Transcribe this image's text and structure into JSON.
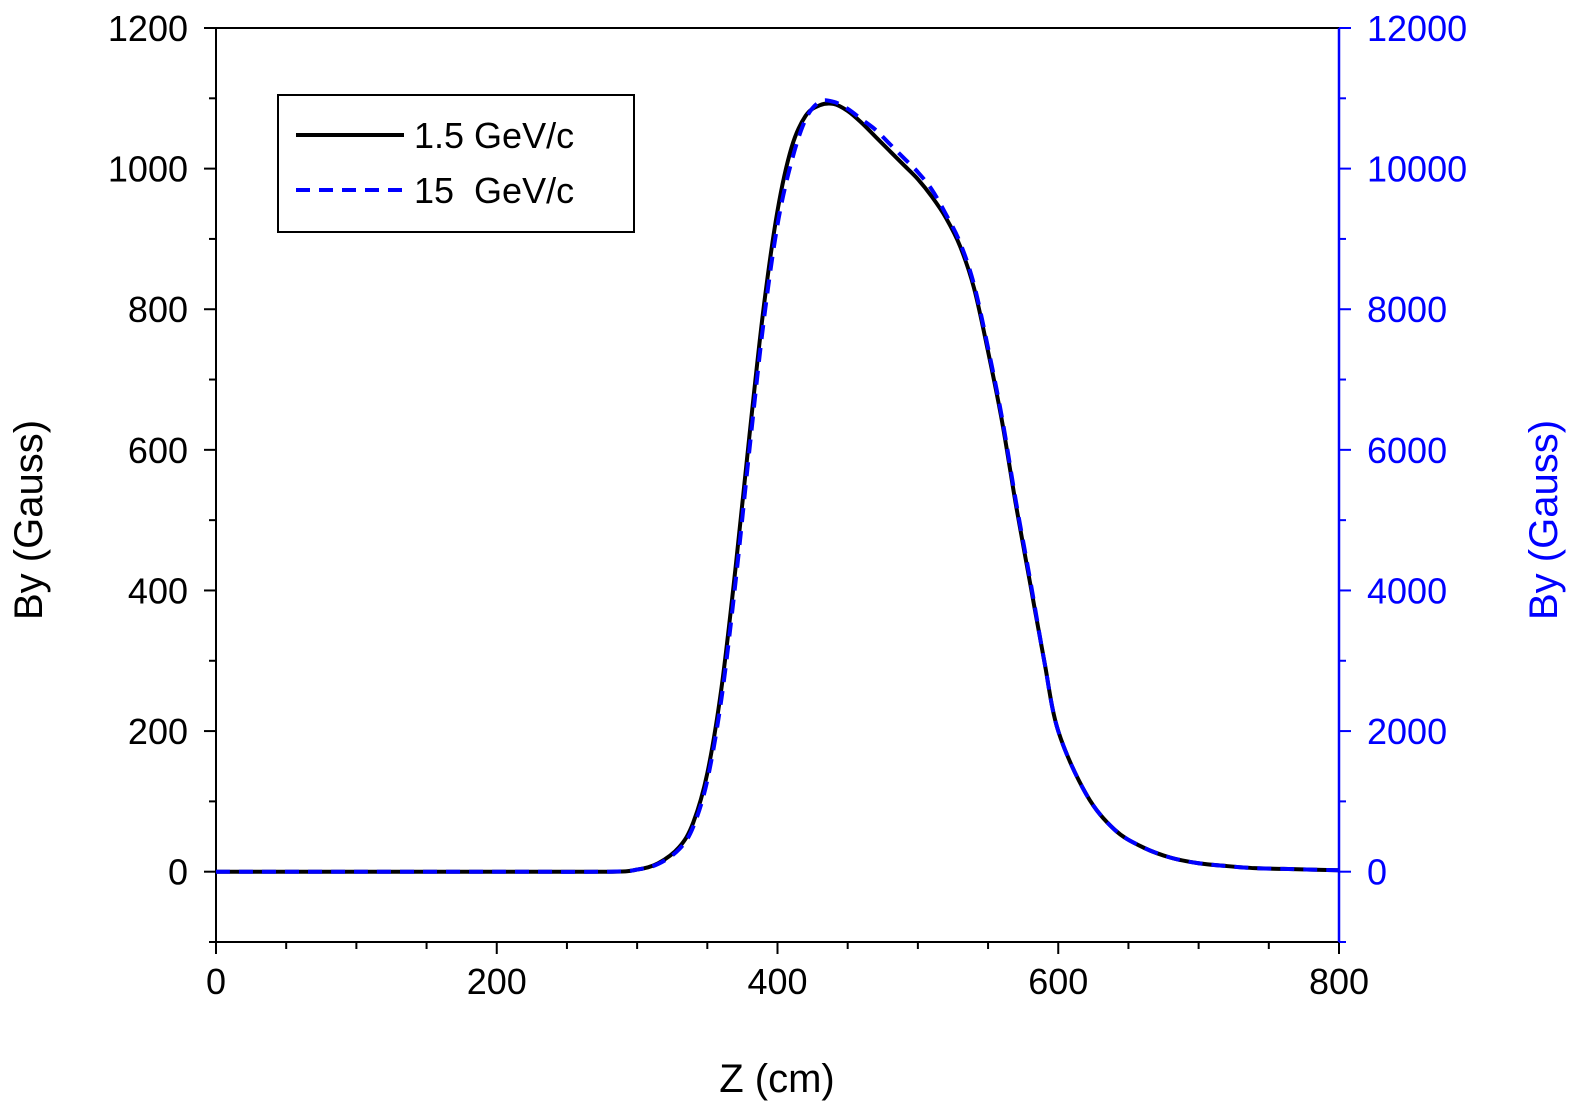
{
  "chart_data": {
    "type": "line",
    "title": "",
    "xlabel": "Z (cm)",
    "ylabel_left": "By (Gauss)",
    "ylabel_right": "By (Gauss)",
    "xlim": [
      0,
      800
    ],
    "ylim_left": [
      -100,
      1200
    ],
    "ylim_right": [
      -1000,
      12000
    ],
    "x_ticks": [
      0,
      200,
      400,
      600,
      800
    ],
    "y_ticks_left": [
      0,
      200,
      400,
      600,
      800,
      1000,
      1200
    ],
    "y_ticks_right": [
      0,
      2000,
      4000,
      6000,
      8000,
      10000,
      12000
    ],
    "grid": false,
    "legend_position": "top-left",
    "colors": {
      "series1": "#000000",
      "series2": "#0000ff",
      "right_axis": "#0000ff",
      "axis": "#000000"
    },
    "series": [
      {
        "name": "1.5 GeV/c",
        "axis": "left",
        "style": "solid",
        "color": "#000000",
        "x": [
          0,
          100,
          200,
          280,
          300,
          315,
          330,
          340,
          350,
          360,
          370,
          380,
          390,
          400,
          410,
          420,
          430,
          440,
          450,
          460,
          470,
          480,
          490,
          500,
          510,
          520,
          530,
          540,
          550,
          560,
          570,
          580,
          590,
          600,
          620,
          640,
          660,
          680,
          700,
          720,
          740,
          760,
          780,
          800
        ],
        "y": [
          0,
          0,
          0,
          0,
          3,
          12,
          35,
          70,
          140,
          260,
          430,
          620,
          800,
          940,
          1030,
          1075,
          1090,
          1092,
          1082,
          1065,
          1045,
          1025,
          1005,
          985,
          960,
          930,
          890,
          830,
          740,
          640,
          520,
          410,
          300,
          200,
          110,
          60,
          35,
          20,
          12,
          8,
          5,
          4,
          3,
          2
        ]
      },
      {
        "name": "15  GeV/c",
        "axis": "right",
        "style": "dashed",
        "color": "#0000ff",
        "x": [
          0,
          100,
          200,
          280,
          300,
          315,
          330,
          340,
          350,
          360,
          370,
          380,
          390,
          400,
          410,
          420,
          430,
          440,
          450,
          460,
          470,
          480,
          490,
          500,
          510,
          520,
          530,
          540,
          550,
          560,
          570,
          580,
          590,
          600,
          620,
          640,
          660,
          680,
          700,
          720,
          740,
          760,
          780,
          800
        ],
        "y": [
          0,
          0,
          0,
          0,
          30,
          110,
          320,
          640,
          1300,
          2450,
          4100,
          6000,
          7800,
          9200,
          10100,
          10700,
          10950,
          10950,
          10850,
          10700,
          10550,
          10350,
          10150,
          9950,
          9700,
          9350,
          8950,
          8350,
          7450,
          6450,
          5250,
          4150,
          3000,
          2000,
          1100,
          600,
          350,
          200,
          120,
          80,
          50,
          40,
          30,
          20
        ]
      }
    ]
  }
}
